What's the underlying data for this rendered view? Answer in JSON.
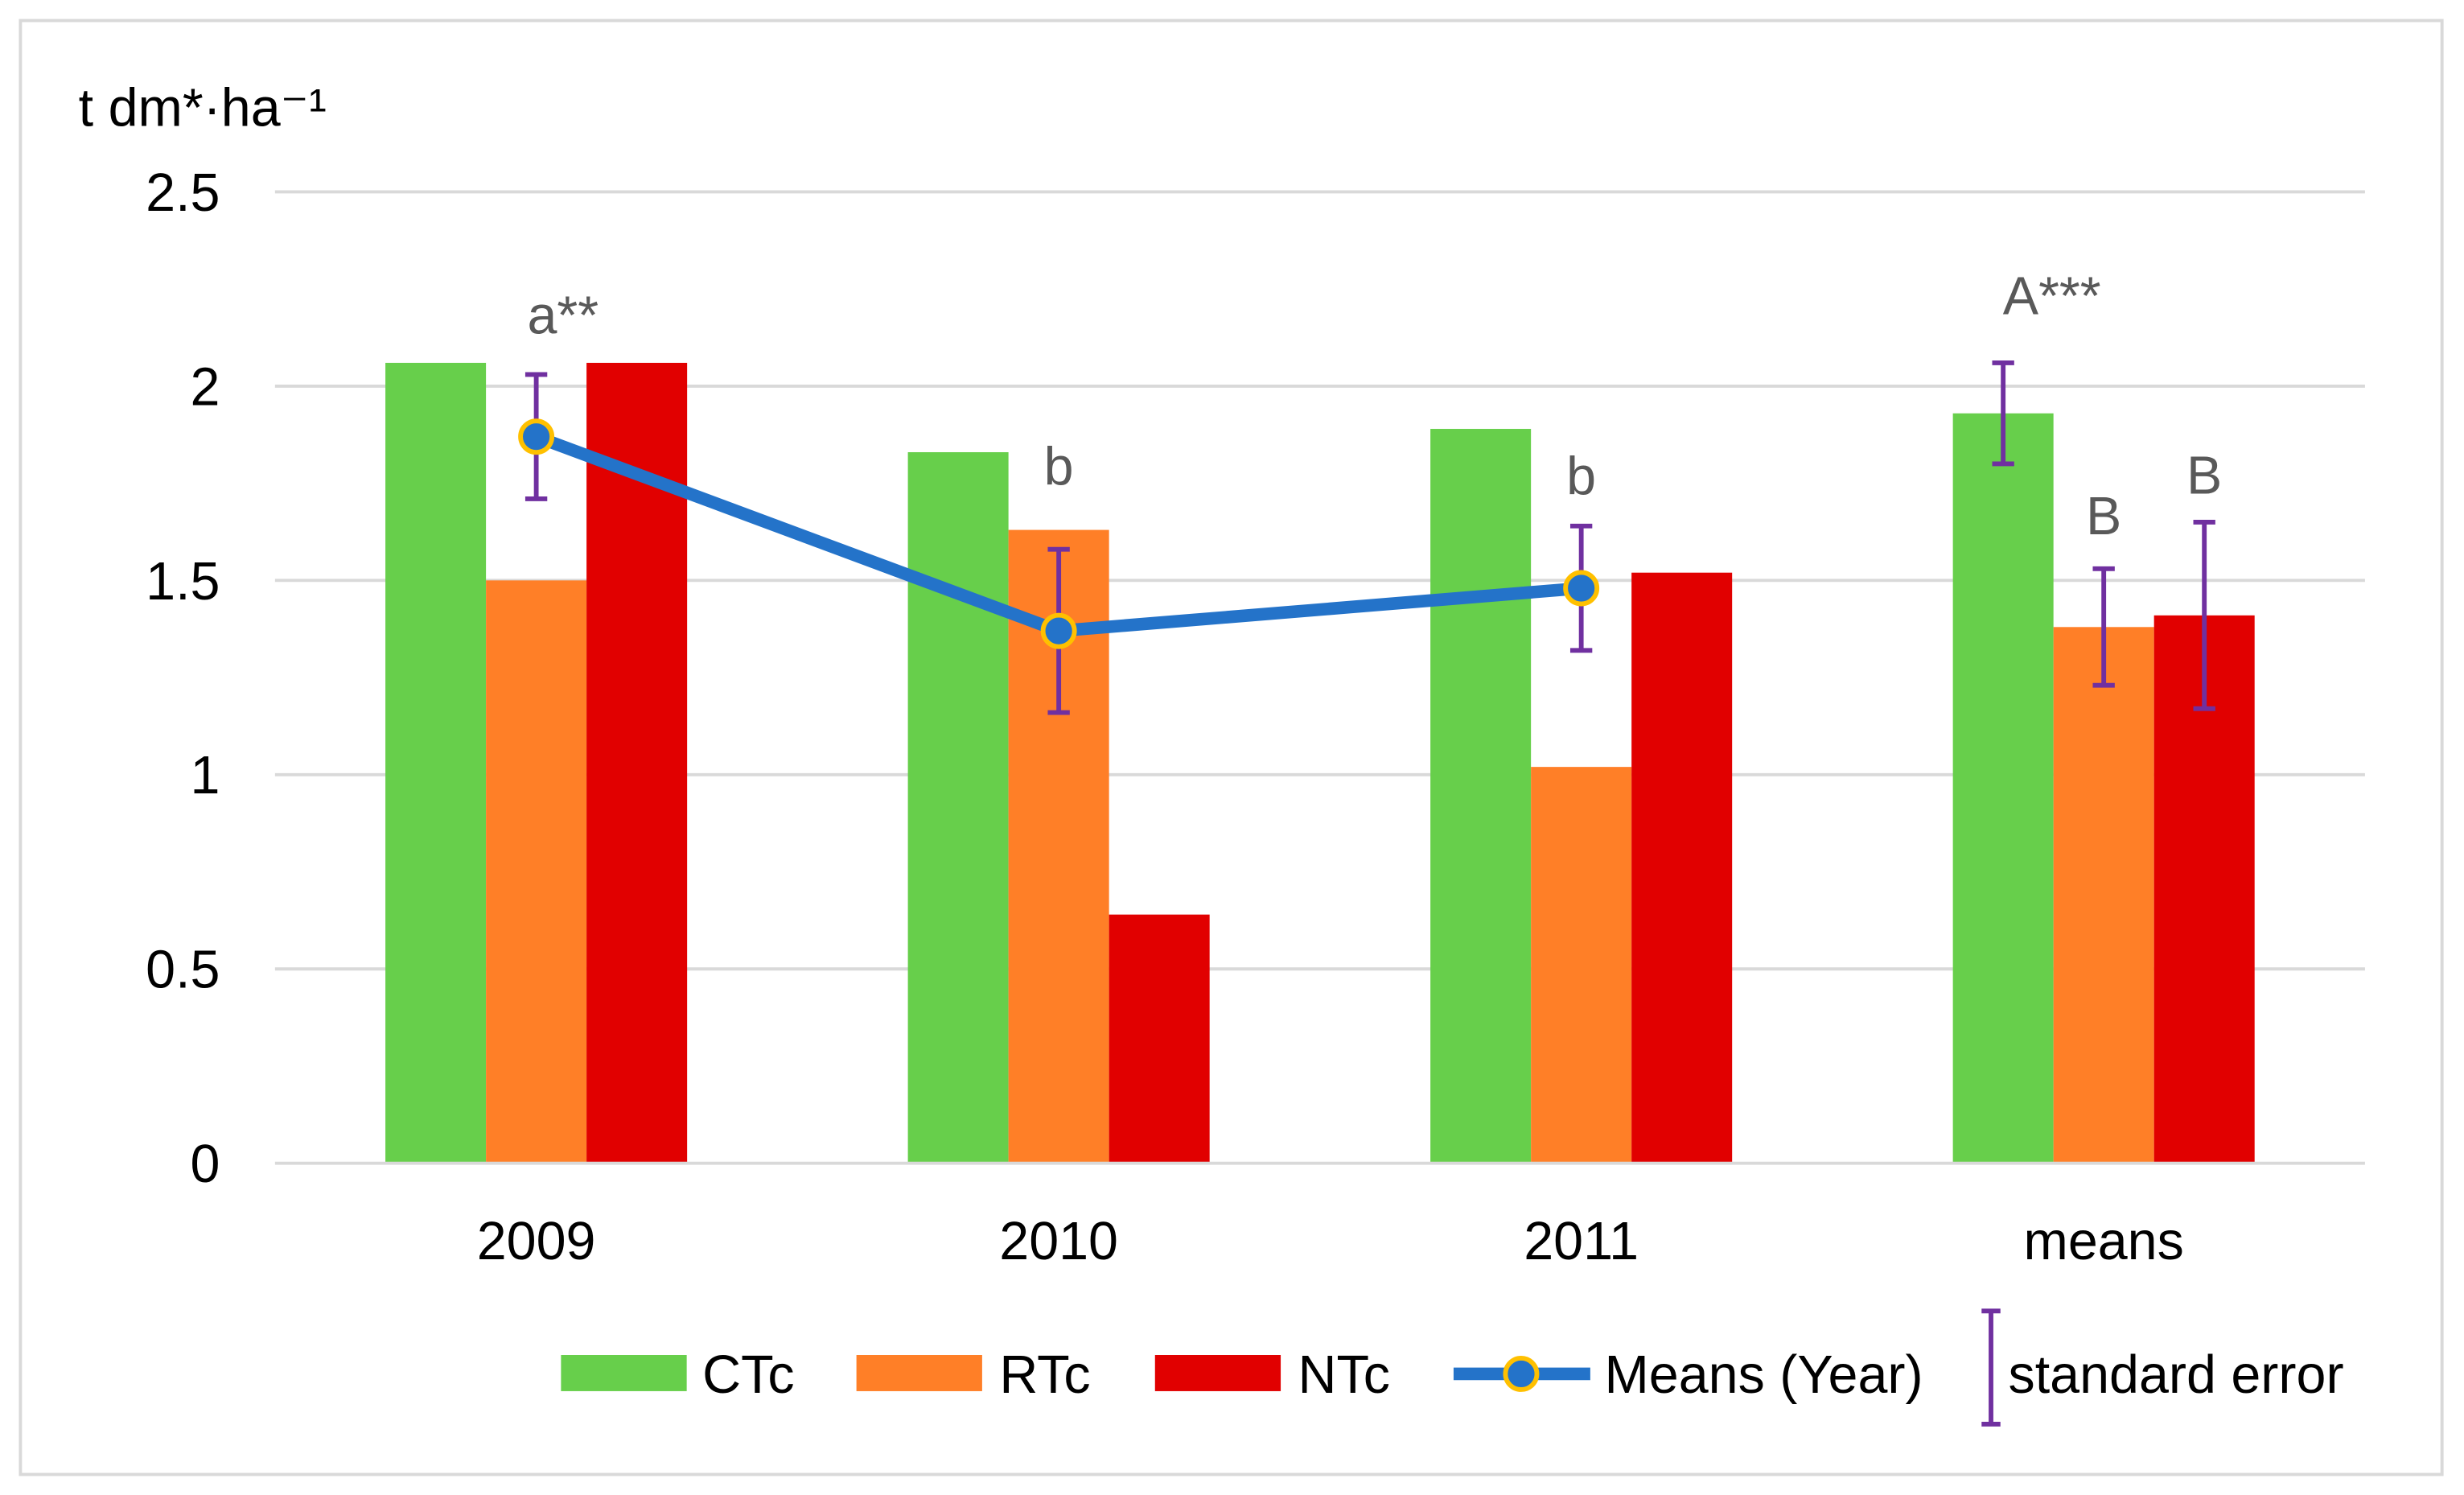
{
  "chart_data": {
    "type": "bar",
    "ylabel": "t dm*·ha⁻¹",
    "ylim": [
      0,
      2.5
    ],
    "yticks": [
      0,
      0.5,
      1,
      1.5,
      2,
      2.5
    ],
    "ytick_labels": [
      "0",
      "0.5",
      "1",
      "1.5",
      "2",
      "2.5"
    ],
    "grid": true,
    "categories": [
      "2009",
      "2010",
      "2011",
      "means"
    ],
    "series": [
      {
        "name": "CTc",
        "type": "bar",
        "color": "#67CF4B",
        "values": [
          2.06,
          1.83,
          1.89,
          1.93
        ],
        "error": [
          null,
          null,
          null,
          0.13
        ]
      },
      {
        "name": "RTc",
        "type": "bar",
        "color": "#FF7F27",
        "values": [
          1.5,
          1.63,
          1.02,
          1.38
        ],
        "error": [
          null,
          null,
          null,
          0.15
        ]
      },
      {
        "name": "NTc",
        "type": "bar",
        "color": "#E10000",
        "values": [
          2.06,
          0.64,
          1.52,
          1.41
        ],
        "error": [
          null,
          null,
          null,
          0.24
        ]
      },
      {
        "name": "Means (Year)",
        "type": "line",
        "color": "#2473C9",
        "marker_edge_color": "#FFC000",
        "values": [
          1.87,
          1.37,
          1.48,
          null
        ],
        "error": [
          0.16,
          0.21,
          0.16,
          null
        ]
      }
    ],
    "error_bar": {
      "label": "standard error",
      "color": "#7030A0"
    },
    "annotations": [
      {
        "text": "a**",
        "category_index": 0,
        "series_index": 3
      },
      {
        "text": "b",
        "category_index": 1,
        "series_index": 3
      },
      {
        "text": "b",
        "category_index": 2,
        "series_index": 3
      },
      {
        "text": "A***",
        "category_index": 3,
        "series_index": 0
      },
      {
        "text": "B",
        "category_index": 3,
        "series_index": 1
      },
      {
        "text": "B",
        "category_index": 3,
        "series_index": 2
      }
    ],
    "legend": {
      "position": "bottom"
    }
  },
  "colors": {
    "grid": "#D9D9D9",
    "axis": "#D9D9D9",
    "frame": "#D9D9D9",
    "annotation_text": "#595959",
    "background": "#FFFFFF"
  }
}
